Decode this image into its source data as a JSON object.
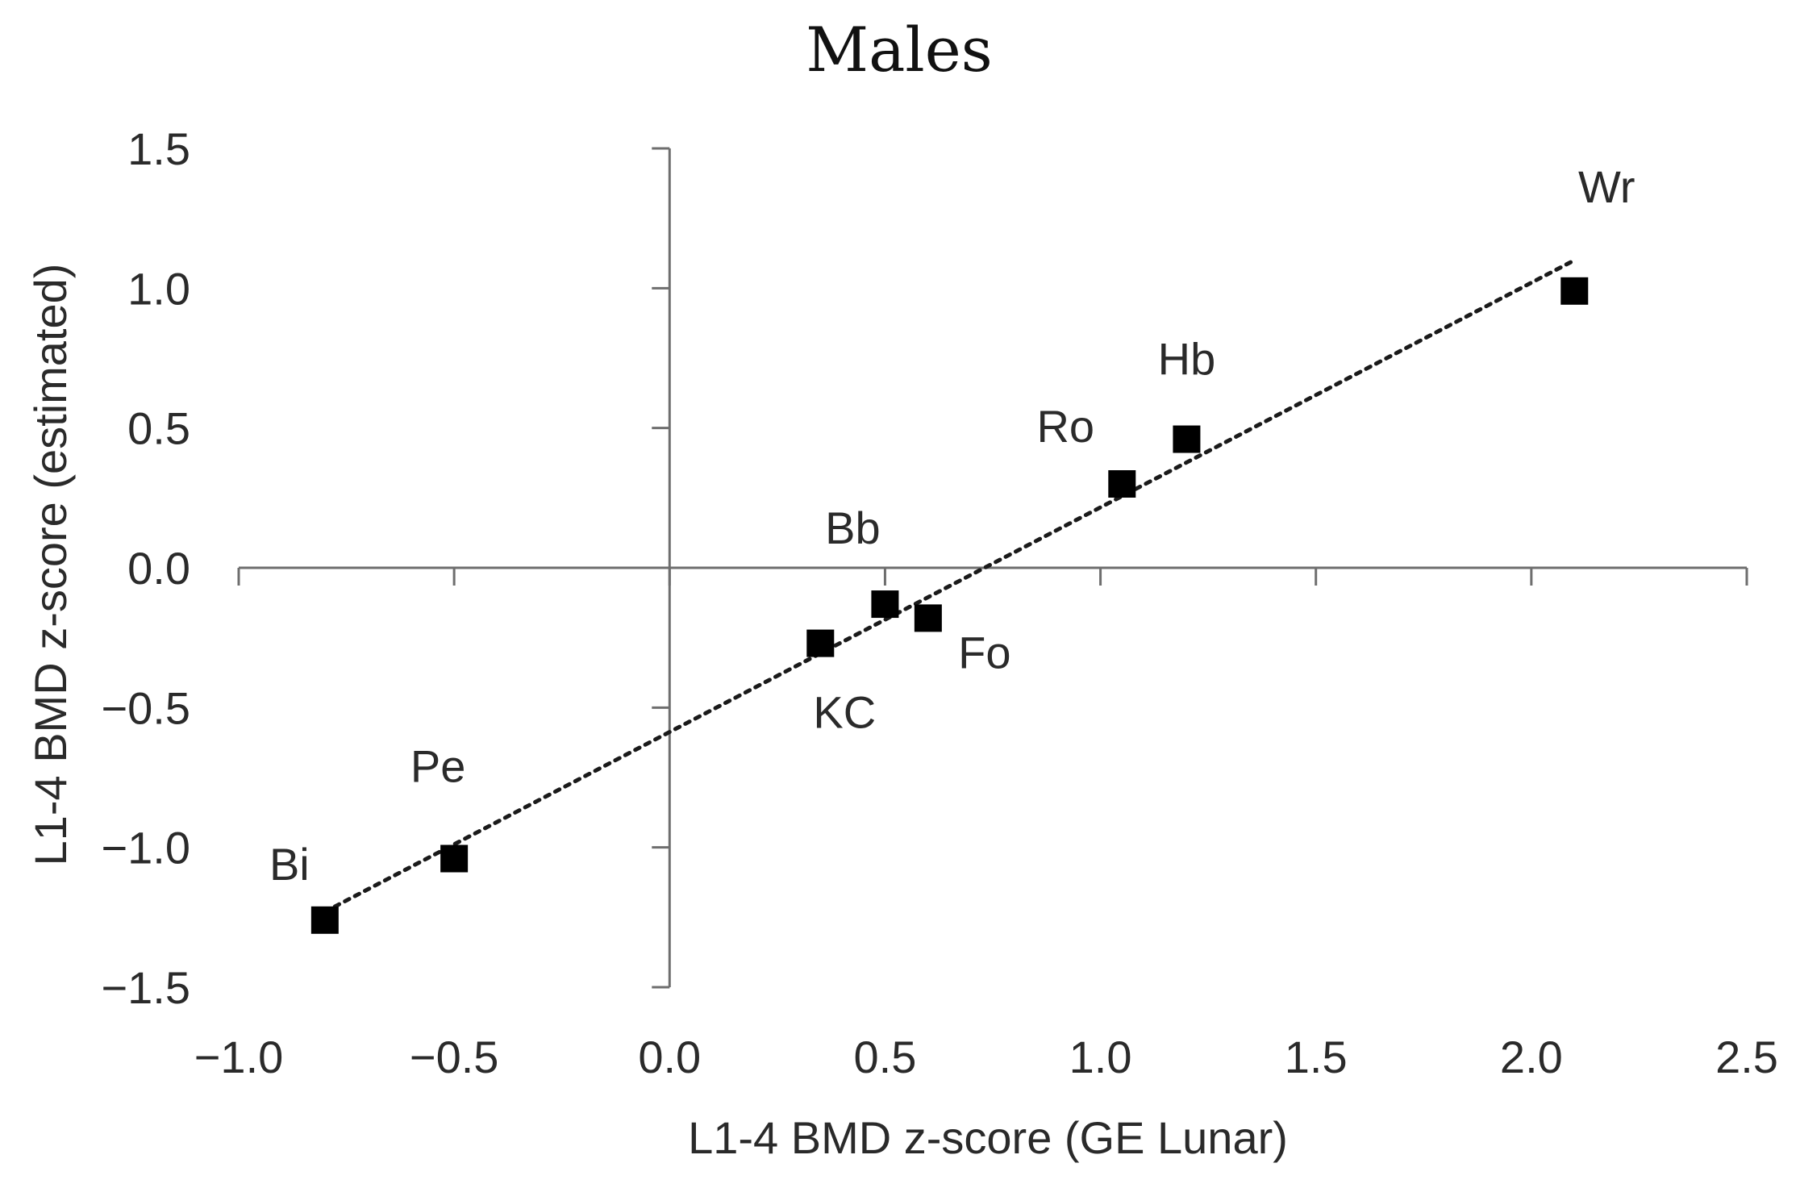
{
  "chart_data": {
    "type": "scatter",
    "title": "Males",
    "xlabel": "L1-4 BMD z-score (GE Lunar)",
    "ylabel": "L1-4 BMD z-score (estimated)",
    "xlim": [
      -1.0,
      2.5
    ],
    "ylim": [
      -1.5,
      1.5
    ],
    "x_ticks": [
      -1.0,
      -0.5,
      0.0,
      0.5,
      1.0,
      1.5,
      2.0,
      2.5
    ],
    "y_ticks": [
      -1.5,
      -1.0,
      -0.5,
      0.0,
      0.5,
      1.0,
      1.5
    ],
    "x_tick_labels": [
      "−1.0",
      "−0.5",
      "0.0",
      "0.5",
      "1.0",
      "1.5",
      "2.0",
      "2.5"
    ],
    "y_tick_labels": [
      "−1.5",
      "−1.0",
      "−0.5",
      "0.0",
      "0.5",
      "1.0",
      "1.5"
    ],
    "points": [
      {
        "label": "Bi",
        "x": -0.8,
        "y": -1.26
      },
      {
        "label": "Pe",
        "x": -0.5,
        "y": -1.04
      },
      {
        "label": "KC",
        "x": 0.35,
        "y": -0.27
      },
      {
        "label": "Bb",
        "x": 0.5,
        "y": -0.13
      },
      {
        "label": "Fo",
        "x": 0.6,
        "y": -0.18
      },
      {
        "label": "Ro",
        "x": 1.05,
        "y": 0.3
      },
      {
        "label": "Hb",
        "x": 1.2,
        "y": 0.46
      },
      {
        "label": "Wr",
        "x": 2.1,
        "y": 0.99
      }
    ],
    "trendline": {
      "style": "dotted",
      "x_start": -0.8,
      "y_start": -1.23,
      "x_end": 2.1,
      "y_end": 1.1
    },
    "grid": false,
    "legend": "none",
    "colors": {
      "marker": "#000000",
      "axis": "#6e6e6e",
      "text": "#2a2a2a",
      "background": "#ffffff"
    }
  }
}
